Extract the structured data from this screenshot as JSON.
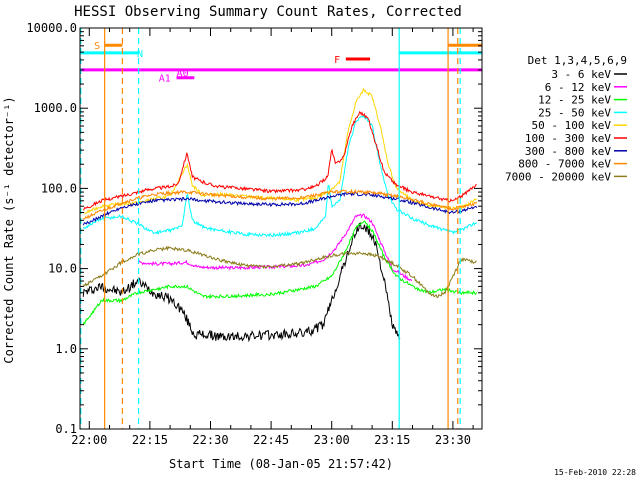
{
  "chart_data": {
    "type": "line",
    "title": "HESSI Observing Summary Count Rates, Corrected",
    "xlabel": "Start Time (08-Jan-05 21:57:42)",
    "ylabel": "Corrected Count Rate (s⁻¹ detector⁻¹)",
    "yscale": "log",
    "ylim": [
      0.1,
      10000
    ],
    "xlim_minutes": [
      -2.3,
      97.2
    ],
    "x_tick_labels": [
      "22:00",
      "22:15",
      "22:30",
      "22:45",
      "23:00",
      "23:15",
      "23:30"
    ],
    "x_tick_minutes": [
      0,
      15,
      30,
      45,
      60,
      75,
      90
    ],
    "y_tick_labels": [
      "0.1",
      "1.0",
      "10.0",
      "100.0",
      "1000.0",
      "10000.0"
    ],
    "y_tick_values": [
      0.1,
      1,
      10,
      100,
      1000,
      10000
    ],
    "legend_placement": "right",
    "legend_header": "Det 1,3,4,5,6,9",
    "series": [
      {
        "name": "3 - 6 keV",
        "color": "#000000",
        "points": [
          [
            -1.5,
            5
          ],
          [
            3,
            6
          ],
          [
            8,
            5
          ],
          [
            12,
            7
          ],
          [
            16,
            5
          ],
          [
            20,
            4.2
          ],
          [
            23,
            3
          ],
          [
            26,
            1.5
          ],
          [
            29,
            1.5
          ],
          [
            33,
            1.4
          ],
          [
            40,
            1.45
          ],
          [
            48,
            1.5
          ],
          [
            54,
            1.6
          ],
          [
            58,
            2
          ],
          [
            60,
            4
          ],
          [
            63,
            11
          ],
          [
            65,
            22
          ],
          [
            67,
            35
          ],
          [
            69,
            30
          ],
          [
            71,
            20
          ],
          [
            73,
            7
          ],
          [
            75,
            2
          ],
          [
            77,
            1.2
          ]
        ]
      },
      {
        "name": "6 - 12 keV",
        "color": "#ff00ff",
        "points": [
          [
            12,
            12
          ],
          [
            16,
            11.5
          ],
          [
            20,
            11.5
          ],
          [
            24,
            12
          ],
          [
            27,
            10.5
          ],
          [
            31,
            10.3
          ],
          [
            36,
            10.2
          ],
          [
            42,
            10.4
          ],
          [
            48,
            10.6
          ],
          [
            54,
            11
          ],
          [
            58,
            13
          ],
          [
            61,
            18
          ],
          [
            64,
            30
          ],
          [
            66,
            45
          ],
          [
            68,
            46
          ],
          [
            70,
            38
          ],
          [
            72,
            22
          ],
          [
            75,
            10
          ],
          [
            80,
            7
          ]
        ]
      },
      {
        "name": "12 - 25 keV",
        "color": "#00ff00",
        "points": [
          [
            -1.5,
            2
          ],
          [
            3,
            4
          ],
          [
            8,
            4
          ],
          [
            12,
            5
          ],
          [
            16,
            5.5
          ],
          [
            20,
            6
          ],
          [
            24,
            6
          ],
          [
            28,
            4.5
          ],
          [
            32,
            4.5
          ],
          [
            38,
            4.6
          ],
          [
            45,
            4.8
          ],
          [
            52,
            5.5
          ],
          [
            56,
            6
          ],
          [
            60,
            8
          ],
          [
            63,
            15
          ],
          [
            66,
            32
          ],
          [
            68,
            40
          ],
          [
            70,
            30
          ],
          [
            73,
            14
          ],
          [
            76,
            8
          ],
          [
            80,
            6
          ],
          [
            84,
            5
          ],
          [
            88,
            5.5
          ],
          [
            92,
            5
          ],
          [
            96,
            5
          ]
        ]
      },
      {
        "name": "25 - 50 keV",
        "color": "#00ffff",
        "points": [
          [
            -1.5,
            32
          ],
          [
            0,
            35
          ],
          [
            3,
            42
          ],
          [
            8,
            45
          ],
          [
            12,
            36
          ],
          [
            16,
            28
          ],
          [
            20,
            30
          ],
          [
            23,
            34
          ],
          [
            24.2,
            90
          ],
          [
            25.5,
            40
          ],
          [
            28,
            33
          ],
          [
            32,
            30
          ],
          [
            38,
            27
          ],
          [
            45,
            26
          ],
          [
            52,
            28
          ],
          [
            56,
            32
          ],
          [
            58.5,
            45
          ],
          [
            59.2,
            120
          ],
          [
            60,
            60
          ],
          [
            62,
            70
          ],
          [
            64,
            300
          ],
          [
            66,
            700
          ],
          [
            68,
            800
          ],
          [
            70,
            600
          ],
          [
            72,
            200
          ],
          [
            74,
            80
          ],
          [
            76,
            55
          ],
          [
            80,
            42
          ],
          [
            84,
            35
          ],
          [
            88,
            30
          ],
          [
            90,
            28
          ],
          [
            93,
            32
          ],
          [
            96,
            38
          ]
        ]
      },
      {
        "name": "50 - 100 keV",
        "color": "#ffd700",
        "points": [
          [
            -1.5,
            48
          ],
          [
            0,
            52
          ],
          [
            3,
            60
          ],
          [
            8,
            64
          ],
          [
            12,
            66
          ],
          [
            16,
            74
          ],
          [
            20,
            80
          ],
          [
            24.2,
            200
          ],
          [
            25.5,
            110
          ],
          [
            28,
            82
          ],
          [
            32,
            85
          ],
          [
            38,
            80
          ],
          [
            45,
            75
          ],
          [
            52,
            72
          ],
          [
            56,
            76
          ],
          [
            59,
            90
          ],
          [
            62,
            120
          ],
          [
            64,
            500
          ],
          [
            66,
            1200
          ],
          [
            68,
            1700
          ],
          [
            70,
            1400
          ],
          [
            72,
            600
          ],
          [
            74,
            200
          ],
          [
            76,
            100
          ],
          [
            80,
            70
          ],
          [
            84,
            62
          ],
          [
            88,
            58
          ],
          [
            90,
            56
          ],
          [
            93,
            60
          ],
          [
            96,
            75
          ]
        ]
      },
      {
        "name": "100 - 300 keV",
        "color": "#ff0000",
        "points": [
          [
            -1.5,
            55
          ],
          [
            0,
            60
          ],
          [
            3,
            70
          ],
          [
            8,
            80
          ],
          [
            12,
            90
          ],
          [
            16,
            100
          ],
          [
            20,
            105
          ],
          [
            22,
            115
          ],
          [
            24.2,
            280
          ],
          [
            25.5,
            140
          ],
          [
            28,
            120
          ],
          [
            32,
            105
          ],
          [
            38,
            100
          ],
          [
            45,
            92
          ],
          [
            52,
            95
          ],
          [
            56,
            105
          ],
          [
            59,
            140
          ],
          [
            60,
            300
          ],
          [
            61,
            200
          ],
          [
            63,
            250
          ],
          [
            65,
            600
          ],
          [
            67,
            900
          ],
          [
            69,
            750
          ],
          [
            71,
            350
          ],
          [
            73,
            160
          ],
          [
            76,
            110
          ],
          [
            80,
            90
          ],
          [
            84,
            80
          ],
          [
            88,
            72
          ],
          [
            90,
            70
          ],
          [
            93,
            85
          ],
          [
            96,
            115
          ]
        ]
      },
      {
        "name": "300 - 800 keV",
        "color": "#0000aa",
        "points": [
          [
            -1.5,
            35
          ],
          [
            0,
            38
          ],
          [
            3,
            45
          ],
          [
            8,
            58
          ],
          [
            12,
            64
          ],
          [
            16,
            70
          ],
          [
            20,
            72
          ],
          [
            24,
            74
          ],
          [
            28,
            70
          ],
          [
            32,
            68
          ],
          [
            38,
            65
          ],
          [
            45,
            63
          ],
          [
            52,
            64
          ],
          [
            56,
            70
          ],
          [
            60,
            80
          ],
          [
            64,
            86
          ],
          [
            68,
            84
          ],
          [
            72,
            80
          ],
          [
            76,
            74
          ],
          [
            80,
            66
          ],
          [
            84,
            58
          ],
          [
            88,
            52
          ],
          [
            90,
            50
          ],
          [
            93,
            54
          ],
          [
            96,
            60
          ]
        ]
      },
      {
        "name": "800 - 7000 keV",
        "color": "#ff8800",
        "points": [
          [
            -1.5,
            42
          ],
          [
            0,
            45
          ],
          [
            3,
            52
          ],
          [
            8,
            66
          ],
          [
            12,
            75
          ],
          [
            16,
            84
          ],
          [
            20,
            88
          ],
          [
            24,
            90
          ],
          [
            28,
            86
          ],
          [
            32,
            82
          ],
          [
            38,
            78
          ],
          [
            45,
            74
          ],
          [
            52,
            76
          ],
          [
            56,
            82
          ],
          [
            60,
            90
          ],
          [
            64,
            92
          ],
          [
            68,
            90
          ],
          [
            72,
            86
          ],
          [
            76,
            80
          ],
          [
            80,
            72
          ],
          [
            84,
            64
          ],
          [
            88,
            58
          ],
          [
            90,
            56
          ],
          [
            93,
            60
          ],
          [
            96,
            65
          ]
        ]
      },
      {
        "name": "7000 - 20000 keV",
        "color": "#8b7d1a",
        "points": [
          [
            -1.5,
            6
          ],
          [
            3,
            8
          ],
          [
            8,
            12
          ],
          [
            12,
            15
          ],
          [
            16,
            17
          ],
          [
            20,
            18
          ],
          [
            24,
            17
          ],
          [
            28,
            15
          ],
          [
            32,
            13
          ],
          [
            38,
            11
          ],
          [
            45,
            10.5
          ],
          [
            52,
            11.5
          ],
          [
            56,
            13
          ],
          [
            60,
            14.5
          ],
          [
            64,
            15.5
          ],
          [
            68,
            15.5
          ],
          [
            72,
            14
          ],
          [
            76,
            11
          ],
          [
            80,
            8
          ],
          [
            84,
            5
          ],
          [
            86,
            4.5
          ],
          [
            88,
            5
          ],
          [
            90,
            8
          ],
          [
            92,
            13
          ],
          [
            96,
            12
          ]
        ]
      }
    ],
    "flag_bars": [
      {
        "label": "S",
        "color": "#ff8800",
        "y": 6100,
        "segments": [
          [
            3.8,
            8.2
          ],
          [
            88.8,
            97.2
          ]
        ]
      },
      {
        "label": "N",
        "color": "#00ffff",
        "y": 4900,
        "segments": [
          [
            -2.3,
            12.2
          ],
          [
            76.7,
            97.2
          ]
        ]
      },
      {
        "label": "",
        "color": "#ff00ff",
        "y": 3000,
        "segments": [
          [
            -2.3,
            97.2
          ]
        ]
      },
      {
        "label": "A0",
        "color": "#ff00ff",
        "y": 2800,
        "segments": []
      },
      {
        "label": "A1",
        "color": "#ff00ff",
        "y": 2400,
        "segments": [
          [
            21.6,
            26
          ]
        ]
      },
      {
        "label": "F",
        "color": "#ff0000",
        "y": 4100,
        "segments": [
          [
            63.5,
            69.5
          ]
        ]
      }
    ],
    "vertical_lines": [
      {
        "x": -2.1,
        "color": "#00ffff",
        "style": "dashed"
      },
      {
        "x": 3.8,
        "color": "#ff8800",
        "style": "solid"
      },
      {
        "x": 8.2,
        "color": "#ff8800",
        "style": "dashed"
      },
      {
        "x": 12.2,
        "color": "#00ffff",
        "style": "dashed"
      },
      {
        "x": 76.7,
        "color": "#00ffff",
        "style": "solid"
      },
      {
        "x": 88.8,
        "color": "#ff8800",
        "style": "solid"
      },
      {
        "x": 91.2,
        "color": "#ff8800",
        "style": "dashed"
      },
      {
        "x": 91.8,
        "color": "#00ffff",
        "style": "dashed"
      }
    ]
  },
  "footer_timestamp": "15-Feb-2010 22:28"
}
